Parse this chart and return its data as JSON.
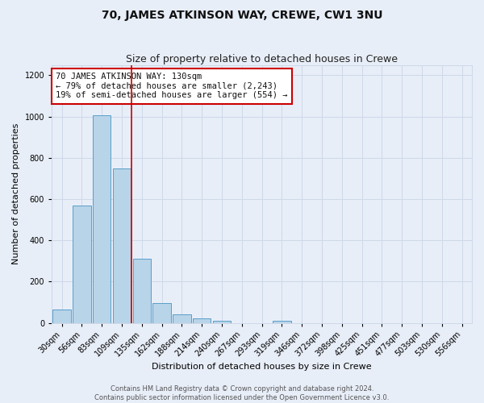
{
  "title": "70, JAMES ATKINSON WAY, CREWE, CW1 3NU",
  "subtitle": "Size of property relative to detached houses in Crewe",
  "xlabel": "Distribution of detached houses by size in Crewe",
  "ylabel": "Number of detached properties",
  "bar_labels": [
    "30sqm",
    "56sqm",
    "83sqm",
    "109sqm",
    "135sqm",
    "162sqm",
    "188sqm",
    "214sqm",
    "240sqm",
    "267sqm",
    "293sqm",
    "319sqm",
    "346sqm",
    "372sqm",
    "398sqm",
    "425sqm",
    "451sqm",
    "477sqm",
    "503sqm",
    "530sqm",
    "556sqm"
  ],
  "bar_values": [
    65,
    570,
    1005,
    750,
    310,
    95,
    42,
    22,
    10,
    0,
    0,
    8,
    0,
    0,
    0,
    0,
    0,
    0,
    0,
    0,
    0
  ],
  "bar_color": "#b8d4e8",
  "bar_edge_color": "#5a9ec9",
  "vline_x": 3.5,
  "vline_color": "#cc0000",
  "annotation_lines": [
    "70 JAMES ATKINSON WAY: 130sqm",
    "← 79% of detached houses are smaller (2,243)",
    "19% of semi-detached houses are larger (554) →"
  ],
  "annotation_box_color": "#ffffff",
  "annotation_box_edge_color": "#cc0000",
  "ylim": [
    0,
    1250
  ],
  "yticks": [
    0,
    200,
    400,
    600,
    800,
    1000,
    1200
  ],
  "grid_color": "#ced8e8",
  "bg_color": "#e8eef8",
  "footer_line1": "Contains HM Land Registry data © Crown copyright and database right 2024.",
  "footer_line2": "Contains public sector information licensed under the Open Government Licence v3.0.",
  "title_fontsize": 10,
  "subtitle_fontsize": 9,
  "axis_label_fontsize": 8,
  "tick_fontsize": 7,
  "annotation_fontsize": 7.5,
  "footer_fontsize": 6
}
